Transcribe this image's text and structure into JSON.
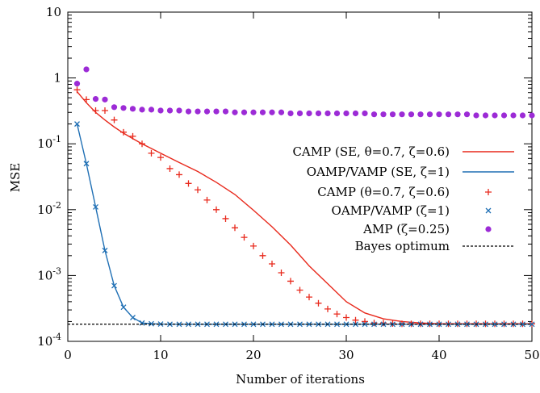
{
  "chart_data": {
    "type": "line",
    "xlabel": "Number of iterations",
    "ylabel": "MSE",
    "xlim": [
      0,
      50
    ],
    "ylim": [
      0.0001,
      10
    ],
    "yscale": "log",
    "grid": false,
    "legend_position": "right",
    "x_ticks": [
      0,
      10,
      20,
      30,
      40,
      50
    ],
    "x_tick_labels": [
      "0",
      "10",
      "20",
      "30",
      "40",
      "50"
    ],
    "y_ticks": [
      0.0001,
      0.001,
      0.01,
      0.1,
      1,
      10
    ],
    "y_tick_labels": [
      {
        "base": "10",
        "exp": "-4"
      },
      {
        "base": "10",
        "exp": "-3"
      },
      {
        "base": "10",
        "exp": "-2"
      },
      {
        "base": "10",
        "exp": "-1"
      },
      {
        "base": "1",
        "exp": ""
      },
      {
        "base": "10",
        "exp": ""
      }
    ],
    "series": [
      {
        "name": "CAMP (SE, θ=0.7, ζ=0.6)",
        "style": "line",
        "color": "#e8291c",
        "x": [
          1,
          2,
          3,
          4,
          5,
          6,
          7,
          8,
          9,
          10,
          12,
          14,
          16,
          18,
          20,
          22,
          24,
          26,
          28,
          30,
          32,
          34,
          36,
          38,
          40,
          42,
          45,
          48,
          50
        ],
        "y": [
          0.62,
          0.42,
          0.3,
          0.23,
          0.18,
          0.145,
          0.12,
          0.1,
          0.085,
          0.072,
          0.052,
          0.038,
          0.026,
          0.017,
          0.0098,
          0.0055,
          0.0029,
          0.0014,
          0.00075,
          0.0004,
          0.00027,
          0.00022,
          0.0002,
          0.00019,
          0.000185,
          0.000185,
          0.000185,
          0.000185,
          0.000185
        ]
      },
      {
        "name": "OAMP/VAMP (SE, ζ=1)",
        "style": "line",
        "color": "#1f6fb4",
        "x": [
          1,
          2,
          3,
          4,
          5,
          6,
          7,
          8,
          9,
          10,
          12,
          15,
          20,
          25,
          30,
          35,
          40,
          45,
          50
        ],
        "y": [
          0.2,
          0.05,
          0.011,
          0.0024,
          0.0007,
          0.00033,
          0.00023,
          0.00019,
          0.000185,
          0.000183,
          0.000182,
          0.000182,
          0.000182,
          0.000182,
          0.000182,
          0.000182,
          0.000182,
          0.000182,
          0.000182
        ]
      },
      {
        "name": "CAMP (θ=0.7, ζ=0.6)",
        "style": "plus",
        "color": "#e8291c",
        "x": [
          1,
          2,
          3,
          4,
          5,
          6,
          7,
          8,
          9,
          10,
          11,
          12,
          13,
          14,
          15,
          16,
          17,
          18,
          19,
          20,
          21,
          22,
          23,
          24,
          25,
          26,
          27,
          28,
          29,
          30,
          31,
          32,
          33,
          34,
          35,
          36,
          37,
          38,
          39,
          40,
          41,
          42,
          43,
          44,
          45,
          46,
          47,
          48,
          49,
          50
        ],
        "y": [
          0.66,
          0.47,
          0.32,
          0.32,
          0.23,
          0.15,
          0.13,
          0.1,
          0.072,
          0.062,
          0.042,
          0.034,
          0.025,
          0.02,
          0.014,
          0.01,
          0.0073,
          0.0053,
          0.0038,
          0.0028,
          0.002,
          0.0015,
          0.0011,
          0.00082,
          0.0006,
          0.00047,
          0.00038,
          0.00031,
          0.00026,
          0.00023,
          0.00021,
          0.0002,
          0.00019,
          0.00019,
          0.000186,
          0.000185,
          0.000185,
          0.000185,
          0.000185,
          0.000185,
          0.000185,
          0.000185,
          0.000185,
          0.000185,
          0.000185,
          0.000185,
          0.000185,
          0.000185,
          0.000185,
          0.000185
        ]
      },
      {
        "name": "OAMP/VAMP (ζ=1)",
        "style": "cross",
        "color": "#1f6fb4",
        "x": [
          1,
          2,
          3,
          4,
          5,
          6,
          7,
          8,
          9,
          10,
          11,
          12,
          13,
          14,
          15,
          16,
          17,
          18,
          19,
          20,
          21,
          22,
          23,
          24,
          25,
          26,
          27,
          28,
          29,
          30,
          31,
          32,
          33,
          34,
          35,
          36,
          37,
          38,
          39,
          40,
          41,
          42,
          43,
          44,
          45,
          46,
          47,
          48,
          49,
          50
        ],
        "y": [
          0.2,
          0.05,
          0.011,
          0.0024,
          0.0007,
          0.00033,
          0.00023,
          0.00019,
          0.000185,
          0.000183,
          0.000182,
          0.000182,
          0.000182,
          0.000182,
          0.000182,
          0.000182,
          0.000182,
          0.000182,
          0.000182,
          0.000182,
          0.000182,
          0.000182,
          0.000182,
          0.000182,
          0.000182,
          0.000182,
          0.000182,
          0.000182,
          0.000182,
          0.000182,
          0.000182,
          0.000182,
          0.000182,
          0.000182,
          0.000182,
          0.000182,
          0.000182,
          0.000182,
          0.000182,
          0.000182,
          0.000182,
          0.000182,
          0.000182,
          0.000182,
          0.000182,
          0.000182,
          0.000182,
          0.000182,
          0.000182,
          0.000182
        ]
      },
      {
        "name": "AMP (ζ=0.25)",
        "style": "dot",
        "color": "#9c2bd6",
        "x": [
          1,
          2,
          3,
          4,
          5,
          6,
          7,
          8,
          9,
          10,
          11,
          12,
          13,
          14,
          15,
          16,
          17,
          18,
          19,
          20,
          21,
          22,
          23,
          24,
          25,
          26,
          27,
          28,
          29,
          30,
          31,
          32,
          33,
          34,
          35,
          36,
          37,
          38,
          39,
          40,
          41,
          42,
          43,
          44,
          45,
          46,
          47,
          48,
          49,
          50
        ],
        "y": [
          0.82,
          1.35,
          0.48,
          0.47,
          0.36,
          0.35,
          0.34,
          0.33,
          0.33,
          0.32,
          0.32,
          0.32,
          0.31,
          0.31,
          0.31,
          0.31,
          0.31,
          0.3,
          0.3,
          0.3,
          0.3,
          0.3,
          0.3,
          0.29,
          0.29,
          0.29,
          0.29,
          0.29,
          0.29,
          0.29,
          0.29,
          0.29,
          0.28,
          0.28,
          0.28,
          0.28,
          0.28,
          0.28,
          0.28,
          0.28,
          0.28,
          0.28,
          0.28,
          0.27,
          0.27,
          0.27,
          0.27,
          0.27,
          0.27,
          0.27
        ]
      },
      {
        "name": "Bayes optimum",
        "style": "dashed",
        "color": "#000000",
        "x": [
          0,
          50
        ],
        "y": [
          0.000182,
          0.000182
        ]
      }
    ]
  }
}
